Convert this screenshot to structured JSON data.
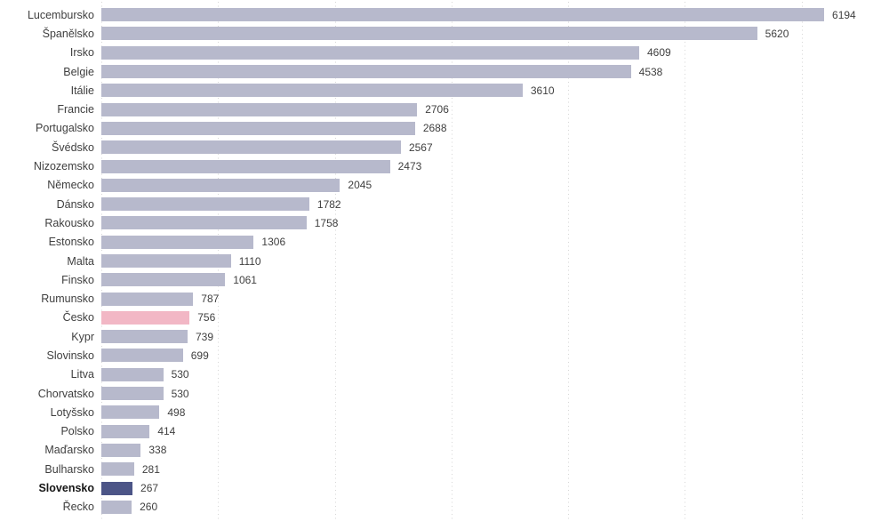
{
  "chart_data": {
    "type": "bar",
    "orientation": "horizontal",
    "title": "",
    "xlabel": "",
    "ylabel": "",
    "categories": [
      "Lucembursko",
      "Španělsko",
      "Irsko",
      "Belgie",
      "Itálie",
      "Francie",
      "Portugalsko",
      "Švédsko",
      "Nizozemsko",
      "Německo",
      "Dánsko",
      "Rakousko",
      "Estonsko",
      "Malta",
      "Finsko",
      "Rumunsko",
      "Česko",
      "Kypr",
      "Slovinsko",
      "Litva",
      "Chorvatsko",
      "Lotyšsko",
      "Polsko",
      "Maďarsko",
      "Bulharsko",
      "Slovensko",
      "Řecko"
    ],
    "values": [
      6194,
      5620,
      4609,
      4538,
      3610,
      2706,
      2688,
      2567,
      2473,
      2045,
      1782,
      1758,
      1306,
      1110,
      1061,
      787,
      756,
      739,
      699,
      530,
      530,
      498,
      414,
      338,
      281,
      267,
      260
    ],
    "value_labels_position": "outside-end",
    "xlim": [
      0,
      6750
    ],
    "gridlines": {
      "interval": 1000,
      "max": 6000,
      "style": "dotted"
    },
    "legend": null,
    "default_bar_color": "#b7b9cc",
    "bar_colors": {
      "16": "#f2b7c5",
      "25": "#4c5587"
    },
    "bold_labels": [
      25
    ],
    "colors": {
      "label_text": "#3f3f3f",
      "value_text": "#3f3f3f",
      "gridline": "#d6d6d6",
      "background": "#ffffff"
    }
  }
}
